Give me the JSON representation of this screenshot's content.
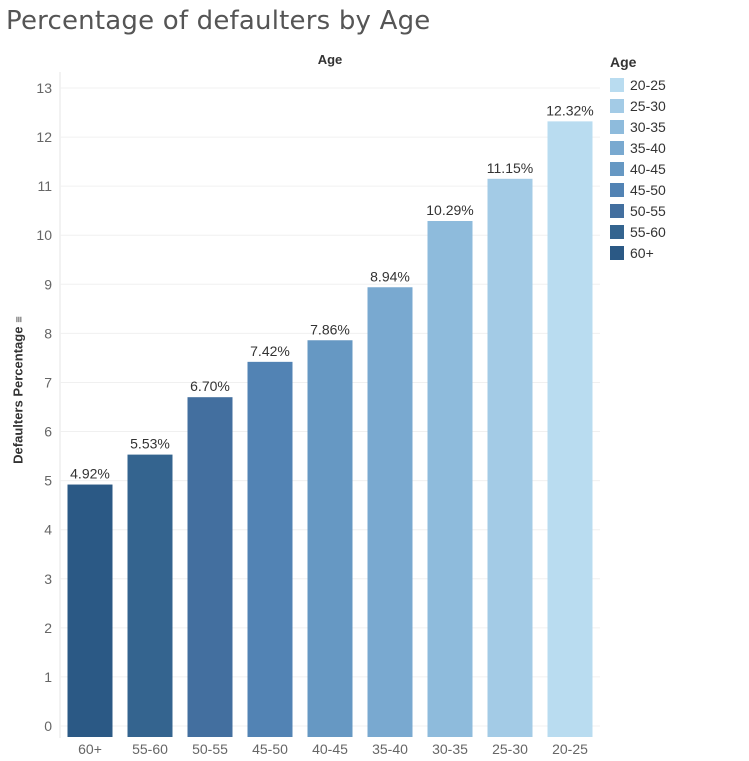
{
  "page": {
    "title": "Percentage of defaulters by Age"
  },
  "chart_data": {
    "type": "bar",
    "title": "Percentage of defaulters by Age",
    "column_header": "Age",
    "xlabel": "",
    "ylabel": "Defaulters Percentage",
    "ylim": [
      0,
      13
    ],
    "y_ticks": [
      0,
      1,
      2,
      3,
      4,
      5,
      6,
      7,
      8,
      9,
      10,
      11,
      12,
      13
    ],
    "grid": true,
    "categories": [
      "60+",
      "55-60",
      "50-55",
      "45-50",
      "40-45",
      "35-40",
      "30-35",
      "25-30",
      "20-25"
    ],
    "values": [
      4.92,
      5.53,
      6.7,
      7.42,
      7.86,
      8.94,
      10.29,
      11.15,
      12.32
    ],
    "data_labels": [
      "4.92%",
      "5.53%",
      "6.70%",
      "7.42%",
      "7.86%",
      "8.94%",
      "10.29%",
      "11.15%",
      "12.32%"
    ],
    "bar_colors": {
      "60+": "#2b5985",
      "55-60": "#34648f",
      "50-55": "#436f9f",
      "45-50": "#5283b4",
      "40-45": "#6698c3",
      "35-40": "#79a9d0",
      "30-35": "#8ebbdc",
      "25-30": "#a3cbe6",
      "20-25": "#b9dcf0"
    },
    "legend": {
      "title": "Age",
      "placement": "right",
      "items": [
        "20-25",
        "25-30",
        "30-35",
        "35-40",
        "40-45",
        "45-50",
        "50-55",
        "55-60",
        "60+"
      ]
    }
  }
}
